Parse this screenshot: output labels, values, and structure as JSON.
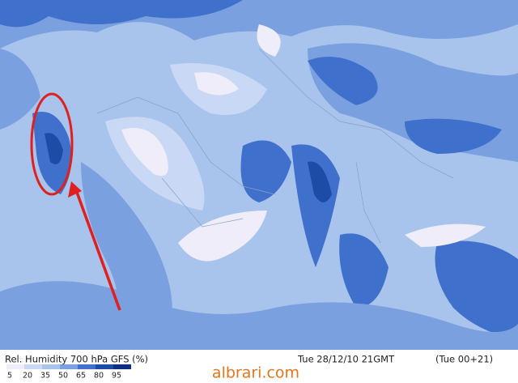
{
  "map": {
    "title": "Rel. Humidity 700 hPa GFS (%)",
    "valid_time": "Tue 28/12/10 21GMT",
    "forecast": "(Tue 00+21)",
    "legend": {
      "levels": [
        5,
        20,
        35,
        50,
        65,
        80,
        95
      ]
    },
    "watermark": "albrari.com"
  }
}
